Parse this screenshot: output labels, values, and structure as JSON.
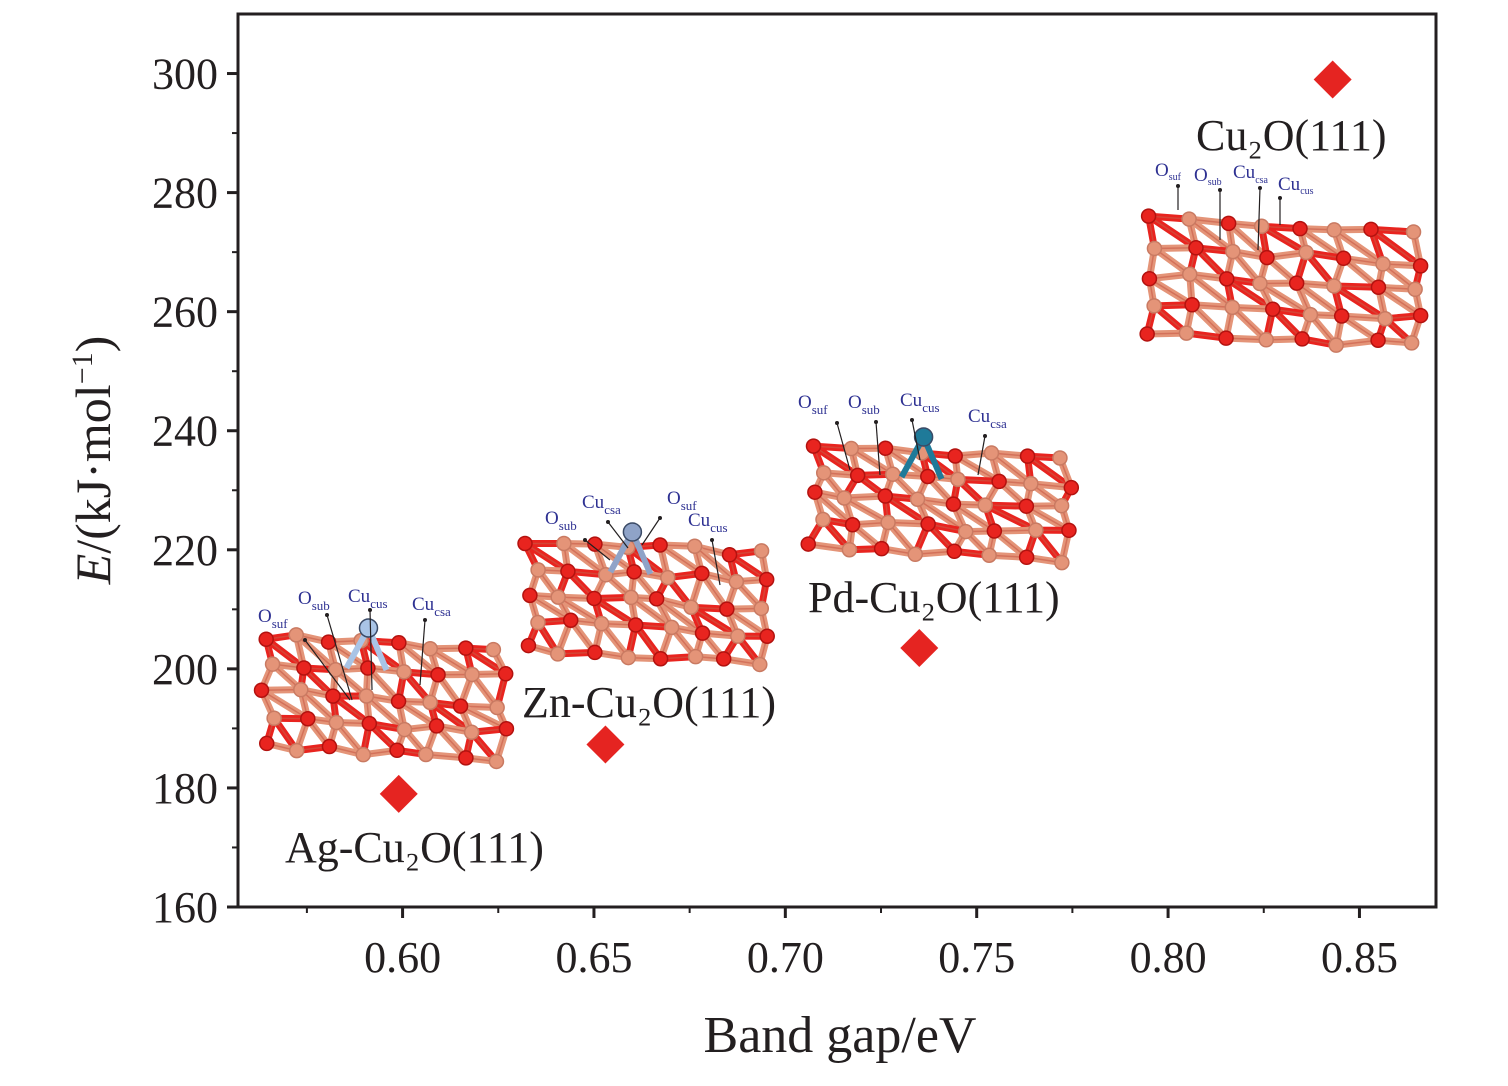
{
  "chart_data": {
    "type": "scatter",
    "title": "",
    "xlabel": "Band gap/eV",
    "ylabel": {
      "italic": "E",
      "rest": "/(kJ·mol",
      "sup": "−1",
      "close": ")"
    },
    "xlim": [
      0.557,
      0.87
    ],
    "ylim": [
      160,
      310
    ],
    "xticks": [
      0.6,
      0.65,
      0.7,
      0.75,
      0.8,
      0.85
    ],
    "xtick_labels": [
      "0.60",
      "0.65",
      "0.70",
      "0.75",
      "0.80",
      "0.85"
    ],
    "yticks": [
      160,
      180,
      200,
      220,
      240,
      260,
      280,
      300
    ],
    "ytick_labels": [
      "160",
      "180",
      "200",
      "220",
      "240",
      "260",
      "280",
      "300"
    ],
    "marker": "diamond",
    "marker_color": "#e52421",
    "points": [
      {
        "x": 0.599,
        "y": 179,
        "label": "Ag-Cu₂O(111)"
      },
      {
        "x": 0.653,
        "y": 187.3,
        "label": "Zn-Cu₂O(111)"
      },
      {
        "x": 0.735,
        "y": 203.5,
        "label": "Pd-Cu₂O(111)"
      },
      {
        "x": 0.843,
        "y": 299,
        "label": "Cu₂O(111)"
      }
    ],
    "annotations": [
      {
        "structure": "Ag-Cu₂O(111)",
        "dopant_color": "#a9c4e6",
        "site_labels": [
          {
            "b": "O",
            "s": "suf"
          },
          {
            "b": "O",
            "s": "sub"
          },
          {
            "b": "Cu",
            "s": "cus"
          },
          {
            "b": "Cu",
            "s": "csa"
          }
        ]
      },
      {
        "structure": "Zn-Cu₂O(111)",
        "dopant_color": "#8fa3c8",
        "site_labels": [
          {
            "b": "O",
            "s": "sub"
          },
          {
            "b": "Cu",
            "s": "csa"
          },
          {
            "b": "O",
            "s": "suf"
          },
          {
            "b": "Cu",
            "s": "cus"
          }
        ]
      },
      {
        "structure": "Pd-Cu₂O(111)",
        "dopant_color": "#1f7a99",
        "site_labels": [
          {
            "b": "O",
            "s": "suf"
          },
          {
            "b": "O",
            "s": "sub"
          },
          {
            "b": "Cu",
            "s": "cus"
          },
          {
            "b": "Cu",
            "s": "csa"
          }
        ]
      },
      {
        "structure": "Cu₂O(111)",
        "dopant_color": "",
        "site_labels": [
          {
            "b": "O",
            "s": "suf"
          },
          {
            "b": "O",
            "s": "sub"
          },
          {
            "b": "Cu",
            "s": "csa"
          },
          {
            "b": "Cu",
            "s": "cus"
          }
        ]
      }
    ],
    "colors": {
      "oxygen": "#e8241f",
      "copper": "#e49478",
      "bond_dark": "#c85a46"
    }
  }
}
